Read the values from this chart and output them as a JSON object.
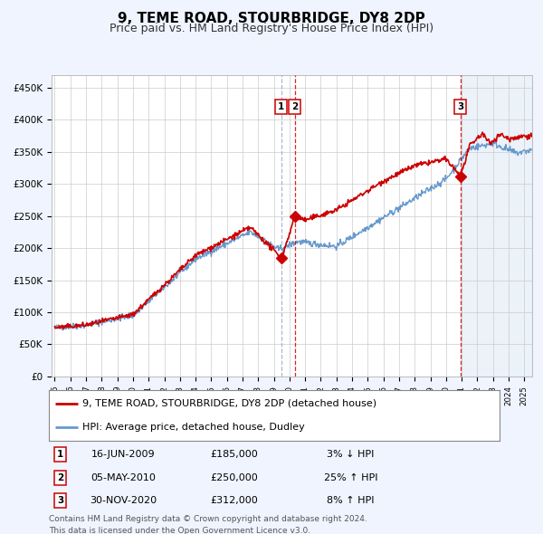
{
  "title": "9, TEME ROAD, STOURBRIDGE, DY8 2DP",
  "subtitle": "Price paid vs. HM Land Registry's House Price Index (HPI)",
  "xlim": [
    1994.8,
    2025.5
  ],
  "ylim": [
    0,
    470000
  ],
  "yticks": [
    0,
    50000,
    100000,
    150000,
    200000,
    250000,
    300000,
    350000,
    400000,
    450000
  ],
  "ytick_labels": [
    "£0",
    "£50K",
    "£100K",
    "£150K",
    "£200K",
    "£250K",
    "£300K",
    "£350K",
    "£400K",
    "£450K"
  ],
  "xtick_years": [
    1995,
    1996,
    1997,
    1998,
    1999,
    2000,
    2001,
    2002,
    2003,
    2004,
    2005,
    2006,
    2007,
    2008,
    2009,
    2010,
    2011,
    2012,
    2013,
    2014,
    2015,
    2016,
    2017,
    2018,
    2019,
    2020,
    2021,
    2022,
    2023,
    2024,
    2025
  ],
  "hpi_color": "#6699cc",
  "hpi_fill_color": "#dce8f5",
  "price_color": "#cc0000",
  "background_color": "#f0f4ff",
  "plot_bg_color": "#ffffff",
  "forecast_start": 2021.0,
  "forecast_fill_color": "#dce8f5",
  "sale_events": [
    {
      "label": "1",
      "date_decimal": 2009.46,
      "price": 185000,
      "date_str": "16-JUN-2009",
      "pct": "3%",
      "direction": "↓",
      "vline_color": "#99aacc",
      "vline_style": "dashed"
    },
    {
      "label": "2",
      "date_decimal": 2010.34,
      "price": 250000,
      "date_str": "05-MAY-2010",
      "pct": "25%",
      "direction": "↑",
      "vline_color": "#cc0000",
      "vline_style": "dashed"
    },
    {
      "label": "3",
      "date_decimal": 2020.92,
      "price": 312000,
      "date_str": "30-NOV-2020",
      "pct": "8%",
      "direction": "↑",
      "vline_color": "#cc0000",
      "vline_style": "dashed"
    }
  ],
  "legend_line1": "9, TEME ROAD, STOURBRIDGE, DY8 2DP (detached house)",
  "legend_line2": "HPI: Average price, detached house, Dudley",
  "footer_line1": "Contains HM Land Registry data © Crown copyright and database right 2024.",
  "footer_line2": "This data is licensed under the Open Government Licence v3.0.",
  "title_fontsize": 11,
  "subtitle_fontsize": 9,
  "axis_fontsize": 7.5,
  "legend_fontsize": 8,
  "footer_fontsize": 6.5
}
